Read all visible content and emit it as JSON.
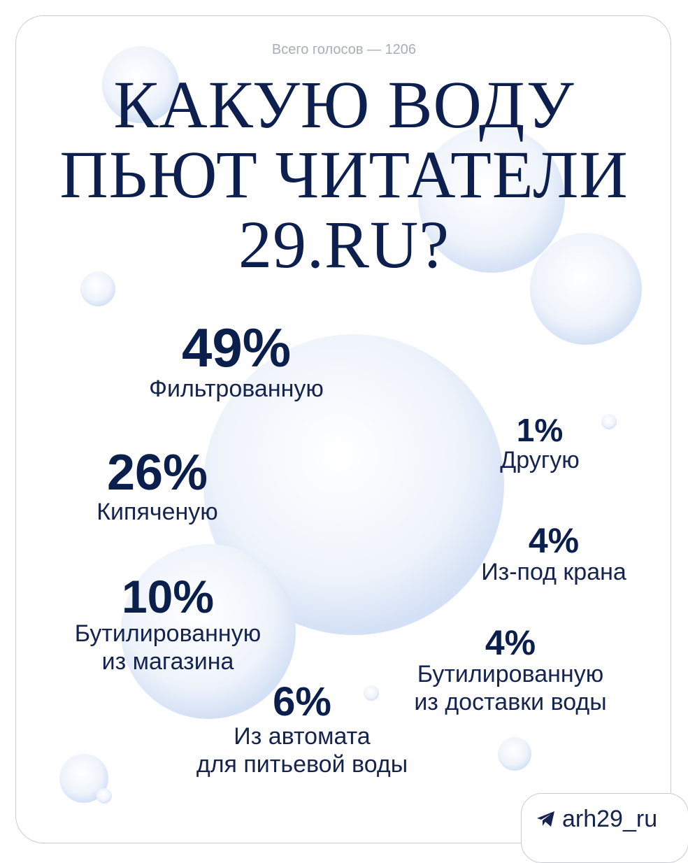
{
  "header": {
    "total": "Всего голосов — 1206",
    "title": [
      "КАКУЮ ВОДУ",
      "ПЬЮТ ЧИТАТЕЛИ",
      "29.RU?"
    ]
  },
  "items": [
    {
      "value": "49%",
      "label": [
        "Фильтрованную"
      ]
    },
    {
      "value": "26%",
      "label": [
        "Кипяченую"
      ]
    },
    {
      "value": "10%",
      "label": [
        "Бутилированную",
        "из магазина"
      ]
    },
    {
      "value": "6%",
      "label": [
        "Из автомата",
        "для питьевой воды"
      ]
    },
    {
      "value": "1%",
      "label": [
        "Другую"
      ]
    },
    {
      "value": "4%",
      "label": [
        "Из-под крана"
      ]
    },
    {
      "value": "4%",
      "label": [
        "Бутилированную",
        "из доставки воды"
      ]
    }
  ],
  "footer": {
    "handle": "arh29_ru"
  }
}
